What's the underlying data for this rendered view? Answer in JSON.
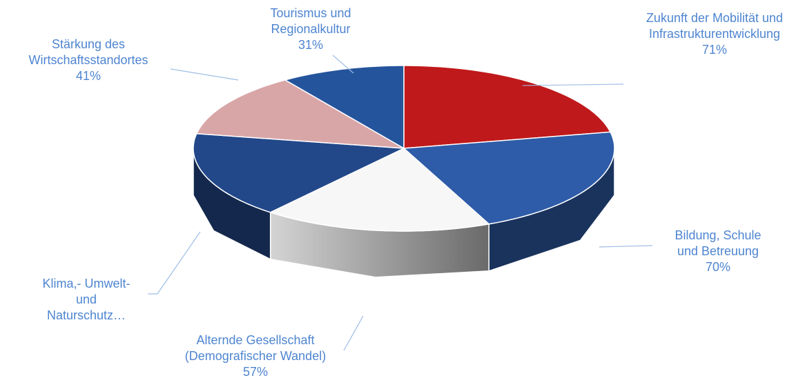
{
  "chart_data": {
    "type": "pie3d",
    "categories": [
      "Zukunft der Mobilität und Infrastrukturentwicklung",
      "Bildung, Schule und Betreuung",
      "Alternde Gesellschaft (Demografischer Wandel)",
      "Klima,- Umwelt- und Naturschutz…",
      "Stärkung des Wirtschaftsstandortes",
      "Tourismus und Regionalkultur"
    ],
    "values": [
      71,
      70,
      57,
      55,
      41,
      31
    ],
    "value_labels": [
      "71%",
      "70%",
      "57%",
      null,
      "41%",
      "31%"
    ],
    "colors": [
      "#c0191b",
      "#2e5ca8",
      "#f7f7f7",
      "#22488a",
      "#d9a6a8",
      "#24559c"
    ]
  }
}
